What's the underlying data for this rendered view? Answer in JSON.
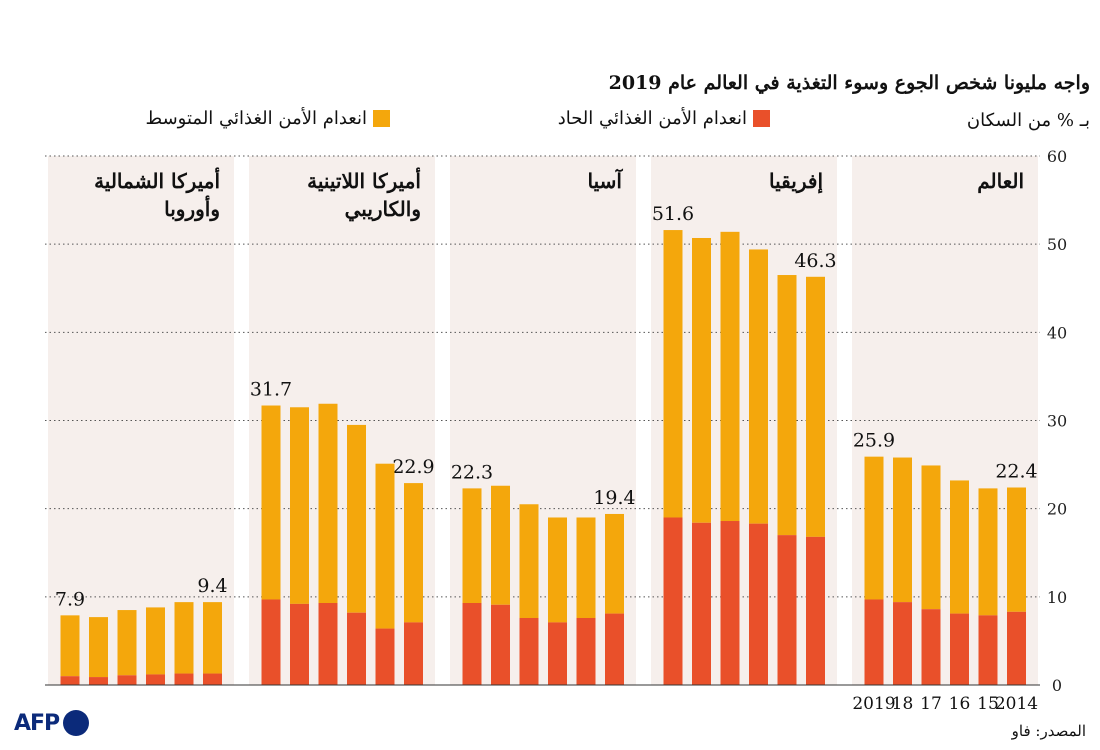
{
  "title": "واجه مليونا شخص الجوع وسوء التغذية في العالم عام 2019",
  "units_label": "بـ % من السكان",
  "source": "المصدر: فاو",
  "logo_text": "AFP",
  "colors": {
    "severe": "#e9502a",
    "moderate": "#f4a70c",
    "panel_bg": "#f6efec",
    "grid": "#555555"
  },
  "chart_data": {
    "type": "bar",
    "stacked": true,
    "title": "واجه مليونا شخص الجوع وسوء التغذية في العالم عام 2019",
    "ylabel": "بـ % من السكان",
    "ylim": [
      0,
      60
    ],
    "yticks": [
      0,
      10,
      20,
      30,
      40,
      50,
      60
    ],
    "years": [
      "2014",
      "15",
      "16",
      "17",
      "18",
      "2019"
    ],
    "legend": [
      {
        "key": "severe",
        "label": "انعدام الأمن الغذائي الحاد"
      },
      {
        "key": "moderate",
        "label": "انعدام الأمن الغذائي المتوسط"
      }
    ],
    "panels": [
      {
        "name": "العالم",
        "name_lines": [
          "العالم"
        ],
        "severe": [
          8.3,
          7.9,
          8.1,
          8.6,
          9.4,
          9.7
        ],
        "total": [
          22.4,
          22.3,
          23.2,
          24.9,
          25.8,
          25.9
        ],
        "first_label": "22.4",
        "last_label": "25.9"
      },
      {
        "name": "إفريقيا",
        "name_lines": [
          "إفريقيا"
        ],
        "severe": [
          16.8,
          17.0,
          18.3,
          18.6,
          18.4,
          19.0
        ],
        "total": [
          46.3,
          46.5,
          49.4,
          51.4,
          50.7,
          51.6
        ],
        "first_label": "46.3",
        "last_label": "51.6"
      },
      {
        "name": "آسيا",
        "name_lines": [
          "آسيا"
        ],
        "severe": [
          8.1,
          7.6,
          7.1,
          7.6,
          9.1,
          9.3
        ],
        "total": [
          19.4,
          19.0,
          19.0,
          20.5,
          22.6,
          22.3
        ],
        "first_label": "19.4",
        "last_label": "22.3"
      },
      {
        "name": "أميركا اللاتينية والكاريبي",
        "name_lines": [
          "أميركا اللاتينية",
          "والكاريبي"
        ],
        "severe": [
          7.1,
          6.4,
          8.2,
          9.3,
          9.2,
          9.7
        ],
        "total": [
          22.9,
          25.1,
          29.5,
          31.9,
          31.5,
          31.7
        ],
        "first_label": "22.9",
        "last_label": "31.7"
      },
      {
        "name": "أميركا الشمالية وأوروبا",
        "name_lines": [
          "أميركا الشمالية",
          "وأوروبا"
        ],
        "severe": [
          1.3,
          1.3,
          1.2,
          1.1,
          0.9,
          1.0
        ],
        "total": [
          9.4,
          9.4,
          8.8,
          8.5,
          7.7,
          7.9
        ],
        "first_label": "9.4",
        "last_label": "7.9"
      }
    ]
  }
}
